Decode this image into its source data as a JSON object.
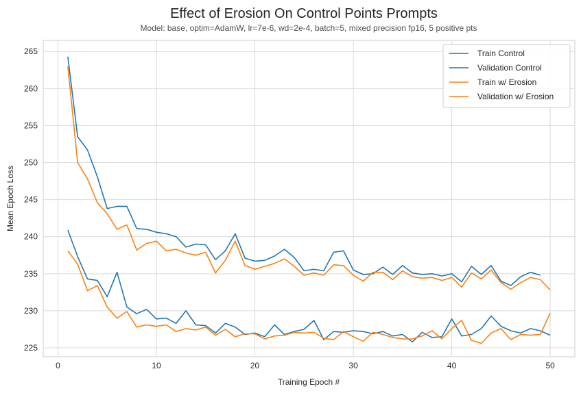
{
  "chart_data": {
    "type": "line",
    "title": "Effect of Erosion On Control Points Prompts",
    "subtitle": "Model: base, optim=AdamW, lr=7e-6, wd=2e-4, batch=5, mixed precision fp16, 5 positive pts",
    "xlabel": "Training Epoch #",
    "ylabel": "Mean Epoch Loss",
    "xlim": [
      -1.5,
      52.5
    ],
    "ylim": [
      223.8,
      266.5
    ],
    "xticks": [
      0,
      10,
      20,
      30,
      40,
      50
    ],
    "yticks": [
      225,
      230,
      235,
      240,
      245,
      250,
      255,
      260,
      265
    ],
    "grid": true,
    "legend_position": "top-right",
    "colors": {
      "control": "#1f77b4",
      "erosion": "#ff7f0e"
    },
    "series": [
      {
        "name": "Train Control",
        "color": "#1f77b4",
        "x": [
          1,
          2,
          3,
          4,
          5,
          6,
          7,
          8,
          9,
          10,
          11,
          12,
          13,
          14,
          15,
          16,
          17,
          18,
          19,
          20,
          21,
          22,
          23,
          24,
          25,
          26,
          27,
          28,
          29,
          30,
          31,
          32,
          33,
          34,
          35,
          36,
          37,
          38,
          39,
          40,
          41,
          42,
          43,
          44,
          45,
          46,
          47,
          48,
          49
        ],
        "values": [
          264.3,
          253.5,
          251.7,
          248.1,
          243.8,
          244.1,
          244.1,
          241.1,
          241.0,
          240.6,
          240.4,
          240.0,
          238.6,
          239.0,
          238.9,
          236.9,
          238.1,
          240.4,
          237.1,
          236.7,
          236.8,
          237.4,
          238.3,
          237.2,
          235.4,
          235.6,
          235.4,
          237.9,
          238.1,
          235.5,
          234.9,
          235.0,
          235.9,
          234.9,
          236.1,
          235.1,
          234.9,
          235.0,
          234.7,
          235.0,
          233.9,
          236.0,
          234.9,
          236.1,
          234.0,
          233.4,
          234.6,
          235.2,
          234.8
        ]
      },
      {
        "name": "Validation Control",
        "color": "#1f77b4",
        "x": [
          1,
          2,
          3,
          4,
          5,
          6,
          7,
          8,
          9,
          10,
          11,
          12,
          13,
          14,
          15,
          16,
          17,
          18,
          19,
          20,
          21,
          22,
          23,
          24,
          25,
          26,
          27,
          28,
          29,
          30,
          31,
          32,
          33,
          34,
          35,
          36,
          37,
          38,
          39,
          40,
          41,
          42,
          43,
          44,
          45,
          46,
          47,
          48,
          49,
          50
        ],
        "values": [
          240.9,
          237.3,
          234.3,
          234.1,
          231.9,
          235.2,
          230.5,
          229.6,
          230.2,
          228.9,
          229.0,
          228.3,
          230.0,
          228.1,
          228.0,
          227.0,
          228.3,
          227.8,
          226.8,
          227.0,
          226.5,
          228.1,
          226.8,
          227.2,
          227.5,
          228.7,
          226.1,
          227.2,
          227.1,
          227.3,
          227.2,
          226.9,
          227.2,
          226.6,
          226.8,
          225.8,
          227.1,
          226.4,
          226.5,
          228.9,
          226.6,
          226.8,
          227.6,
          229.3,
          227.9,
          227.3,
          227.0,
          227.6,
          227.3,
          226.7
        ]
      },
      {
        "name": "Train w/ Erosion",
        "color": "#ff7f0e",
        "x": [
          1,
          2,
          3,
          4,
          5,
          6,
          7,
          8,
          9,
          10,
          11,
          12,
          13,
          14,
          15,
          16,
          17,
          18,
          19,
          20,
          21,
          22,
          23,
          24,
          25,
          26,
          27,
          28,
          29,
          30,
          31,
          32,
          33,
          34,
          35,
          36,
          37,
          38,
          39,
          40,
          41,
          42,
          43,
          44,
          45,
          46,
          47,
          48,
          49,
          50
        ],
        "values": [
          263.0,
          250.0,
          247.8,
          244.6,
          243.1,
          241.0,
          241.6,
          238.2,
          239.1,
          239.4,
          238.1,
          238.3,
          237.8,
          237.5,
          237.9,
          235.1,
          236.8,
          239.4,
          236.1,
          235.6,
          236.0,
          236.4,
          237.0,
          236.0,
          234.8,
          235.1,
          234.8,
          236.2,
          236.1,
          234.8,
          234.0,
          235.2,
          235.2,
          234.2,
          235.4,
          234.6,
          234.4,
          234.5,
          234.1,
          234.5,
          233.2,
          235.1,
          234.3,
          235.5,
          233.8,
          232.9,
          233.8,
          234.5,
          234.2,
          232.8
        ]
      },
      {
        "name": "Validation w/ Erosion",
        "color": "#ff7f0e",
        "x": [
          1,
          2,
          3,
          4,
          5,
          6,
          7,
          8,
          9,
          10,
          11,
          12,
          13,
          14,
          15,
          16,
          17,
          18,
          19,
          20,
          21,
          22,
          23,
          24,
          25,
          26,
          27,
          28,
          29,
          30,
          31,
          32,
          33,
          34,
          35,
          36,
          37,
          38,
          39,
          40,
          41,
          42,
          43,
          44,
          45,
          46,
          47,
          48,
          49,
          50
        ],
        "values": [
          238.1,
          236.3,
          232.7,
          233.4,
          230.5,
          229.0,
          229.9,
          227.8,
          228.1,
          227.9,
          228.1,
          227.2,
          227.6,
          227.4,
          227.8,
          226.7,
          227.5,
          226.5,
          226.9,
          226.9,
          226.2,
          226.6,
          226.7,
          227.1,
          227.0,
          227.1,
          226.3,
          226.1,
          227.2,
          226.5,
          225.9,
          227.1,
          226.8,
          226.4,
          226.2,
          226.2,
          226.6,
          227.3,
          226.2,
          227.6,
          228.7,
          226.0,
          225.6,
          227.0,
          227.6,
          226.1,
          226.8,
          226.7,
          226.8,
          229.7
        ]
      }
    ]
  }
}
